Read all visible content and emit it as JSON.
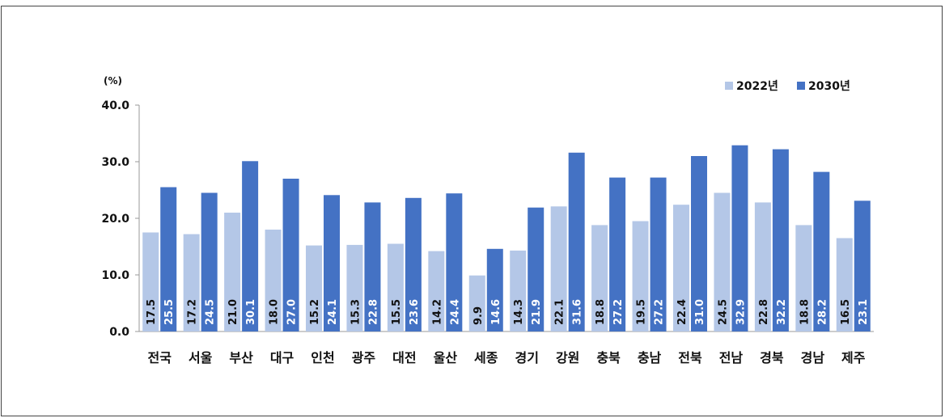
{
  "chart_data": {
    "type": "bar",
    "unit_label": "(%)",
    "categories": [
      "전국",
      "서울",
      "부산",
      "대구",
      "인천",
      "광주",
      "대전",
      "울산",
      "세종",
      "경기",
      "강원",
      "충북",
      "충남",
      "전북",
      "전남",
      "경북",
      "경남",
      "제주"
    ],
    "series": [
      {
        "name": "2022년",
        "color": "#b4c7e7",
        "values": [
          17.5,
          17.2,
          21.0,
          18.0,
          15.2,
          15.3,
          15.5,
          14.2,
          9.9,
          14.3,
          22.1,
          18.8,
          19.5,
          22.4,
          24.5,
          22.8,
          18.8,
          16.5
        ]
      },
      {
        "name": "2030년",
        "color": "#4472c4",
        "values": [
          25.5,
          24.5,
          30.1,
          27.0,
          24.1,
          22.8,
          23.6,
          24.4,
          14.6,
          21.9,
          31.6,
          27.2,
          27.2,
          31.0,
          32.9,
          32.2,
          28.2,
          23.1
        ]
      }
    ],
    "ylim": [
      0,
      40
    ],
    "yticks": [
      "0.0",
      "10.0",
      "20.0",
      "30.0",
      "40.0"
    ],
    "legend_position": "top-right",
    "data_labels": "inside-bar-vertical"
  }
}
